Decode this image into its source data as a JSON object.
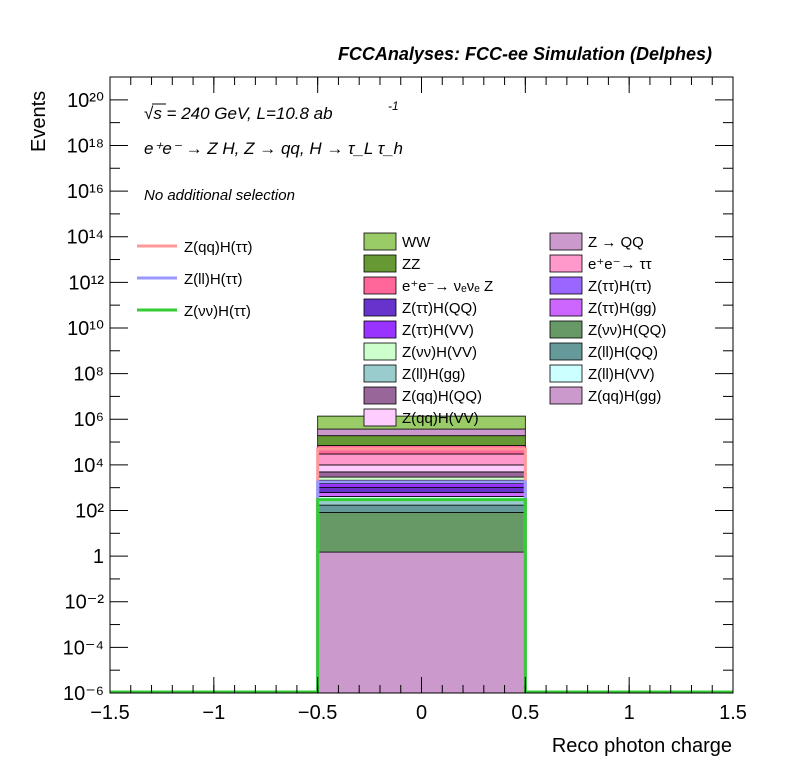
{
  "header": {
    "title": "FCCAnalyses: FCC-ee Simulation (Delphes)"
  },
  "annotations": {
    "energy": "√s = 240 GeV, L=10.8 ab",
    "lumi_exp": "-1",
    "process": "e⁺e⁻ → Z H, Z → qq, H → τ_L τ_h",
    "selection": "No additional selection"
  },
  "chart_data": {
    "type": "bar",
    "xlabel": "Reco photon charge",
    "ylabel": "Events",
    "xlim": [
      -1.5,
      1.5
    ],
    "ylim": [
      1e-06,
      1e+21
    ],
    "log_y": true,
    "x_ticks": [
      "−1.5",
      "−1",
      "−0.5",
      "0",
      "0.5",
      "1",
      "1.5"
    ],
    "y_ticks": [
      "10⁻⁶",
      "10⁻⁴",
      "10⁻²",
      "1",
      "10²",
      "10⁴",
      "10⁶",
      "10⁸",
      "10¹⁰",
      "10¹²",
      "10¹⁴",
      "10¹⁶",
      "10¹⁸",
      "10²⁰"
    ],
    "bin": [
      -0.5,
      0.5
    ],
    "stack": [
      {
        "name": "Z(qq)H(gg)",
        "color": "#cc99cc",
        "value": 1.5
      },
      {
        "name": "Z(νν)H(QQ)",
        "color": "#669966",
        "value": 80
      },
      {
        "name": "Z(ll)H(QQ)",
        "color": "#669999",
        "value": 90
      },
      {
        "name": "Z(ll)H(gg)",
        "color": "#99cccc",
        "value": 110
      },
      {
        "name": "Z(ll)H(VV)",
        "color": "#ccffff",
        "value": 130
      },
      {
        "name": "Z(ττ)H(gg)",
        "color": "#cc66ff",
        "value": 200
      },
      {
        "name": "Z(ττ)H(QQ)",
        "color": "#6633cc",
        "value": 400
      },
      {
        "name": "Z(ττ)H(VV)",
        "color": "#9933ff",
        "value": 500
      },
      {
        "name": "Z(ττ)H(ττ)",
        "color": "#9966ff",
        "value": 600
      },
      {
        "name": "Z(νν)H(VV)",
        "color": "#ccffcc",
        "value": 800
      },
      {
        "name": "Z(qq)H(QQ)",
        "color": "#996699",
        "value": 2000
      },
      {
        "name": "Z(qq)H(VV)",
        "color": "#ffccff",
        "value": 5000
      },
      {
        "name": "e⁺e⁻→ τ τ",
        "color": "#ff99cc",
        "value": 20000
      },
      {
        "name": "e⁺e⁻→ νₑνₑ Z",
        "color": "#ff6699",
        "value": 40000
      },
      {
        "name": "ZZ",
        "color": "#669933",
        "value": 120000
      },
      {
        "name": "Z → QQ",
        "color": "#cc99cc",
        "value": 180000
      },
      {
        "name": "WW",
        "color": "#99cc66",
        "value": 1000000
      }
    ],
    "signals": [
      {
        "name": "Z(qq)H(ττ)",
        "color": "#ff9999",
        "value": 50000
      },
      {
        "name": "Z(ll)H(ττ)",
        "color": "#9999ff",
        "value": 1800
      },
      {
        "name": "Z(νν)H(ττ)",
        "color": "#33cc33",
        "value": 300
      }
    ],
    "legend_signals": [
      {
        "label": "Z(qq)H(ττ)",
        "color": "#ff9999"
      },
      {
        "label": "Z(ll)H(ττ)",
        "color": "#9999ff"
      },
      {
        "label": "Z(νν)H(ττ)",
        "color": "#33cc33"
      }
    ],
    "legend_col1": [
      {
        "label": "WW",
        "color": "#99cc66"
      },
      {
        "label": "ZZ",
        "color": "#669933"
      },
      {
        "label": "e⁺e⁻→ νₑνₑ Z",
        "color": "#ff6699"
      },
      {
        "label": "Z(ττ)H(QQ)",
        "color": "#6633cc"
      },
      {
        "label": "Z(ττ)H(VV)",
        "color": "#9933ff"
      },
      {
        "label": "Z(νν)H(VV)",
        "color": "#ccffcc"
      },
      {
        "label": "Z(ll)H(gg)",
        "color": "#99cccc"
      },
      {
        "label": "Z(qq)H(QQ)",
        "color": "#996699"
      },
      {
        "label": "Z(qq)H(VV)",
        "color": "#ffccff"
      }
    ],
    "legend_col2": [
      {
        "label": "Z → QQ",
        "color": "#cc99cc"
      },
      {
        "label": "e⁺e⁻→ ττ",
        "color": "#ff99cc"
      },
      {
        "label": "Z(ττ)H(ττ)",
        "color": "#9966ff"
      },
      {
        "label": "Z(ττ)H(gg)",
        "color": "#cc66ff"
      },
      {
        "label": "Z(νν)H(QQ)",
        "color": "#669966"
      },
      {
        "label": "Z(ll)H(QQ)",
        "color": "#669999"
      },
      {
        "label": "Z(ll)H(VV)",
        "color": "#ccffff"
      },
      {
        "label": "Z(qq)H(gg)",
        "color": "#cc99cc"
      }
    ]
  }
}
